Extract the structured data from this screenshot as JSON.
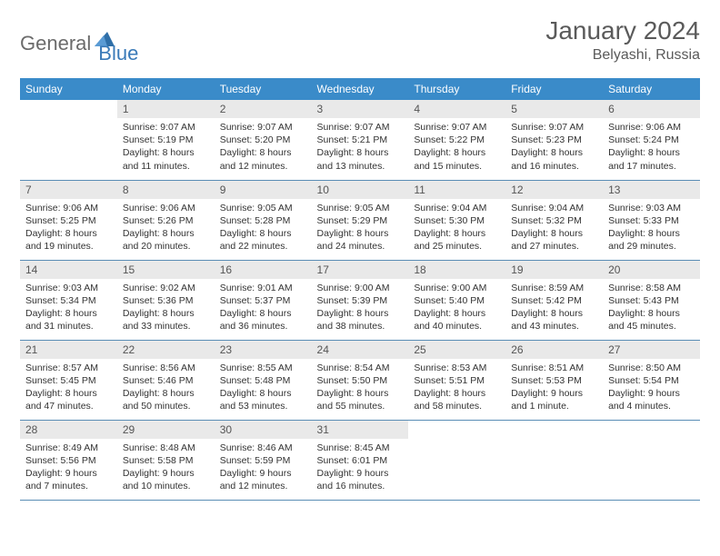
{
  "brand": {
    "part1": "General",
    "part2": "Blue"
  },
  "title": "January 2024",
  "location": "Belyashi, Russia",
  "colors": {
    "header_bg": "#3a8bc9",
    "header_fg": "#ffffff",
    "daynum_bg": "#e9e9e9",
    "row_border": "#5a8db5",
    "brand_gray": "#6b6b6b",
    "brand_blue": "#3a7ab8"
  },
  "columns": [
    "Sunday",
    "Monday",
    "Tuesday",
    "Wednesday",
    "Thursday",
    "Friday",
    "Saturday"
  ],
  "first_weekday_index": 1,
  "days": [
    {
      "n": 1,
      "sr": "9:07 AM",
      "ss": "5:19 PM",
      "dl": "8 hours and 11 minutes."
    },
    {
      "n": 2,
      "sr": "9:07 AM",
      "ss": "5:20 PM",
      "dl": "8 hours and 12 minutes."
    },
    {
      "n": 3,
      "sr": "9:07 AM",
      "ss": "5:21 PM",
      "dl": "8 hours and 13 minutes."
    },
    {
      "n": 4,
      "sr": "9:07 AM",
      "ss": "5:22 PM",
      "dl": "8 hours and 15 minutes."
    },
    {
      "n": 5,
      "sr": "9:07 AM",
      "ss": "5:23 PM",
      "dl": "8 hours and 16 minutes."
    },
    {
      "n": 6,
      "sr": "9:06 AM",
      "ss": "5:24 PM",
      "dl": "8 hours and 17 minutes."
    },
    {
      "n": 7,
      "sr": "9:06 AM",
      "ss": "5:25 PM",
      "dl": "8 hours and 19 minutes."
    },
    {
      "n": 8,
      "sr": "9:06 AM",
      "ss": "5:26 PM",
      "dl": "8 hours and 20 minutes."
    },
    {
      "n": 9,
      "sr": "9:05 AM",
      "ss": "5:28 PM",
      "dl": "8 hours and 22 minutes."
    },
    {
      "n": 10,
      "sr": "9:05 AM",
      "ss": "5:29 PM",
      "dl": "8 hours and 24 minutes."
    },
    {
      "n": 11,
      "sr": "9:04 AM",
      "ss": "5:30 PM",
      "dl": "8 hours and 25 minutes."
    },
    {
      "n": 12,
      "sr": "9:04 AM",
      "ss": "5:32 PM",
      "dl": "8 hours and 27 minutes."
    },
    {
      "n": 13,
      "sr": "9:03 AM",
      "ss": "5:33 PM",
      "dl": "8 hours and 29 minutes."
    },
    {
      "n": 14,
      "sr": "9:03 AM",
      "ss": "5:34 PM",
      "dl": "8 hours and 31 minutes."
    },
    {
      "n": 15,
      "sr": "9:02 AM",
      "ss": "5:36 PM",
      "dl": "8 hours and 33 minutes."
    },
    {
      "n": 16,
      "sr": "9:01 AM",
      "ss": "5:37 PM",
      "dl": "8 hours and 36 minutes."
    },
    {
      "n": 17,
      "sr": "9:00 AM",
      "ss": "5:39 PM",
      "dl": "8 hours and 38 minutes."
    },
    {
      "n": 18,
      "sr": "9:00 AM",
      "ss": "5:40 PM",
      "dl": "8 hours and 40 minutes."
    },
    {
      "n": 19,
      "sr": "8:59 AM",
      "ss": "5:42 PM",
      "dl": "8 hours and 43 minutes."
    },
    {
      "n": 20,
      "sr": "8:58 AM",
      "ss": "5:43 PM",
      "dl": "8 hours and 45 minutes."
    },
    {
      "n": 21,
      "sr": "8:57 AM",
      "ss": "5:45 PM",
      "dl": "8 hours and 47 minutes."
    },
    {
      "n": 22,
      "sr": "8:56 AM",
      "ss": "5:46 PM",
      "dl": "8 hours and 50 minutes."
    },
    {
      "n": 23,
      "sr": "8:55 AM",
      "ss": "5:48 PM",
      "dl": "8 hours and 53 minutes."
    },
    {
      "n": 24,
      "sr": "8:54 AM",
      "ss": "5:50 PM",
      "dl": "8 hours and 55 minutes."
    },
    {
      "n": 25,
      "sr": "8:53 AM",
      "ss": "5:51 PM",
      "dl": "8 hours and 58 minutes."
    },
    {
      "n": 26,
      "sr": "8:51 AM",
      "ss": "5:53 PM",
      "dl": "9 hours and 1 minute."
    },
    {
      "n": 27,
      "sr": "8:50 AM",
      "ss": "5:54 PM",
      "dl": "9 hours and 4 minutes."
    },
    {
      "n": 28,
      "sr": "8:49 AM",
      "ss": "5:56 PM",
      "dl": "9 hours and 7 minutes."
    },
    {
      "n": 29,
      "sr": "8:48 AM",
      "ss": "5:58 PM",
      "dl": "9 hours and 10 minutes."
    },
    {
      "n": 30,
      "sr": "8:46 AM",
      "ss": "5:59 PM",
      "dl": "9 hours and 12 minutes."
    },
    {
      "n": 31,
      "sr": "8:45 AM",
      "ss": "6:01 PM",
      "dl": "9 hours and 16 minutes."
    }
  ],
  "labels": {
    "sunrise": "Sunrise:",
    "sunset": "Sunset:",
    "daylight": "Daylight:"
  }
}
